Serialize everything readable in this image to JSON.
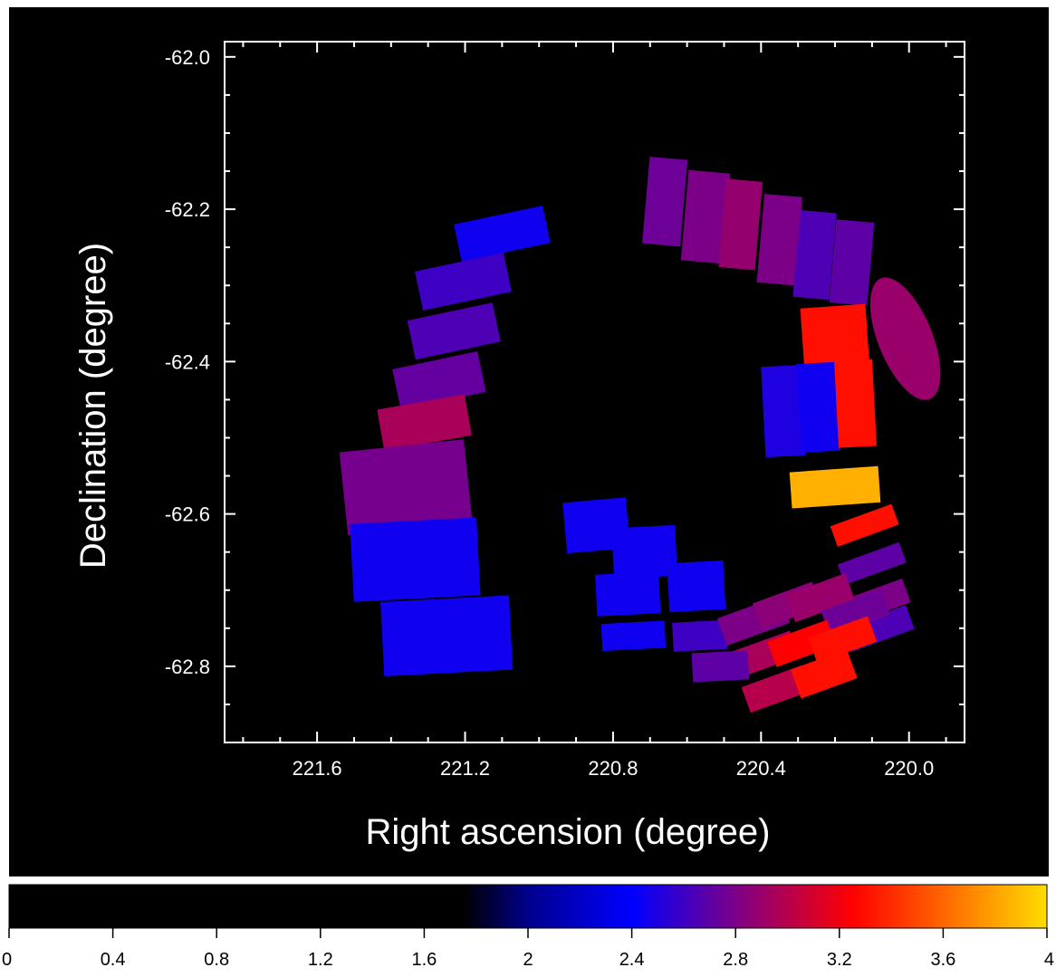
{
  "chart_data": {
    "type": "heatmap",
    "title": "",
    "xlabel": "Right ascension (degree)",
    "ylabel": "Declination (degree)",
    "x_reversed": true,
    "xlim": [
      221.85,
      219.85
    ],
    "ylim": [
      -62.9,
      -61.98
    ],
    "x_ticks": [
      221.6,
      221.2,
      220.8,
      220.4,
      220.0
    ],
    "x_tick_labels": [
      "221.6",
      "221.2",
      "220.8",
      "220.4",
      "220.0"
    ],
    "y_ticks": [
      -62.0,
      -62.2,
      -62.4,
      -62.6,
      -62.8
    ],
    "y_tick_labels": [
      "-62.0",
      "-62.2",
      "-62.4",
      "-62.6",
      "-62.8"
    ],
    "background": "#000000",
    "axes_color": "#ffffff",
    "colorbar": {
      "min": 0,
      "max": 4,
      "ticks": [
        0,
        0.4,
        0.8,
        1.2,
        1.6,
        2,
        2.4,
        2.8,
        3.2,
        3.6,
        4
      ],
      "tick_labels": [
        "0",
        "0.4",
        "0.8",
        "1.2",
        "1.6",
        "2",
        "2.4",
        "2.8",
        "3.2",
        "3.6",
        "4"
      ],
      "stops": [
        {
          "v": 0.0,
          "c": "#000000"
        },
        {
          "v": 1.75,
          "c": "#000000"
        },
        {
          "v": 2.0,
          "c": "#00008c"
        },
        {
          "v": 2.4,
          "c": "#0000ff"
        },
        {
          "v": 2.85,
          "c": "#8c0078"
        },
        {
          "v": 3.25,
          "c": "#ff0000"
        },
        {
          "v": 3.6,
          "c": "#ff6600"
        },
        {
          "v": 4.0,
          "c": "#ffdd00"
        }
      ]
    },
    "regions": [
      {
        "ra": 221.1,
        "dec": -62.232,
        "value": 2.45
      },
      {
        "ra": 221.205,
        "dec": -62.295,
        "value": 2.6
      },
      {
        "ra": 221.23,
        "dec": -62.36,
        "value": 2.65
      },
      {
        "ra": 221.27,
        "dec": -62.425,
        "value": 2.72
      },
      {
        "ra": 221.31,
        "dec": -62.48,
        "value": 2.95
      },
      {
        "ra": 221.36,
        "dec": -62.565,
        "value": 2.78
      },
      {
        "ra": 221.335,
        "dec": -62.66,
        "value": 2.45
      },
      {
        "ra": 221.25,
        "dec": -62.76,
        "value": 2.45
      },
      {
        "ra": 220.66,
        "dec": -62.19,
        "value": 2.75
      },
      {
        "ra": 220.55,
        "dec": -62.21,
        "value": 2.8
      },
      {
        "ra": 220.455,
        "dec": -62.22,
        "value": 2.88
      },
      {
        "ra": 220.35,
        "dec": -62.24,
        "value": 2.8
      },
      {
        "ra": 220.255,
        "dec": -62.26,
        "value": 2.65
      },
      {
        "ra": 220.155,
        "dec": -62.27,
        "value": 2.7
      },
      {
        "ra": 220.2,
        "dec": -62.37,
        "value": 3.3
      },
      {
        "ra": 220.34,
        "dec": -62.465,
        "value": 2.5
      },
      {
        "ra": 220.245,
        "dec": -62.46,
        "value": 2.45
      },
      {
        "ra": 220.145,
        "dec": -62.455,
        "value": 3.3
      },
      {
        "ra": 220.2,
        "dec": -62.565,
        "value": 3.85
      },
      {
        "ra": 220.12,
        "dec": -62.615,
        "value": 3.3
      },
      {
        "ra": 220.1,
        "dec": -62.665,
        "value": 2.7
      },
      {
        "ra": 220.09,
        "dec": -62.715,
        "value": 2.8
      },
      {
        "ra": 220.08,
        "dec": -62.75,
        "value": 2.65
      },
      {
        "ra": 220.845,
        "dec": -62.615,
        "value": 2.45
      },
      {
        "ra": 220.715,
        "dec": -62.65,
        "value": 2.45
      },
      {
        "ra": 220.76,
        "dec": -62.705,
        "value": 2.45
      },
      {
        "ra": 220.575,
        "dec": -62.695,
        "value": 2.45
      },
      {
        "ra": 220.745,
        "dec": -62.76,
        "value": 2.45
      },
      {
        "ra": 220.565,
        "dec": -62.76,
        "value": 2.6
      },
      {
        "ra": 220.42,
        "dec": -62.74,
        "value": 2.8
      },
      {
        "ra": 220.33,
        "dec": -62.72,
        "value": 2.85
      },
      {
        "ra": 220.24,
        "dec": -62.71,
        "value": 2.9
      },
      {
        "ra": 220.145,
        "dec": -62.73,
        "value": 2.75
      },
      {
        "ra": 220.395,
        "dec": -62.785,
        "value": 2.95
      },
      {
        "ra": 220.29,
        "dec": -62.77,
        "value": 3.25
      },
      {
        "ra": 220.18,
        "dec": -62.765,
        "value": 3.3
      },
      {
        "ra": 220.51,
        "dec": -62.8,
        "value": 2.7
      },
      {
        "ra": 220.36,
        "dec": -62.83,
        "value": 3.0
      },
      {
        "ra": 220.23,
        "dec": -62.81,
        "value": 3.3
      }
    ],
    "ellipse": {
      "ra": 220.01,
      "dec": -62.37,
      "value": 2.9
    }
  }
}
